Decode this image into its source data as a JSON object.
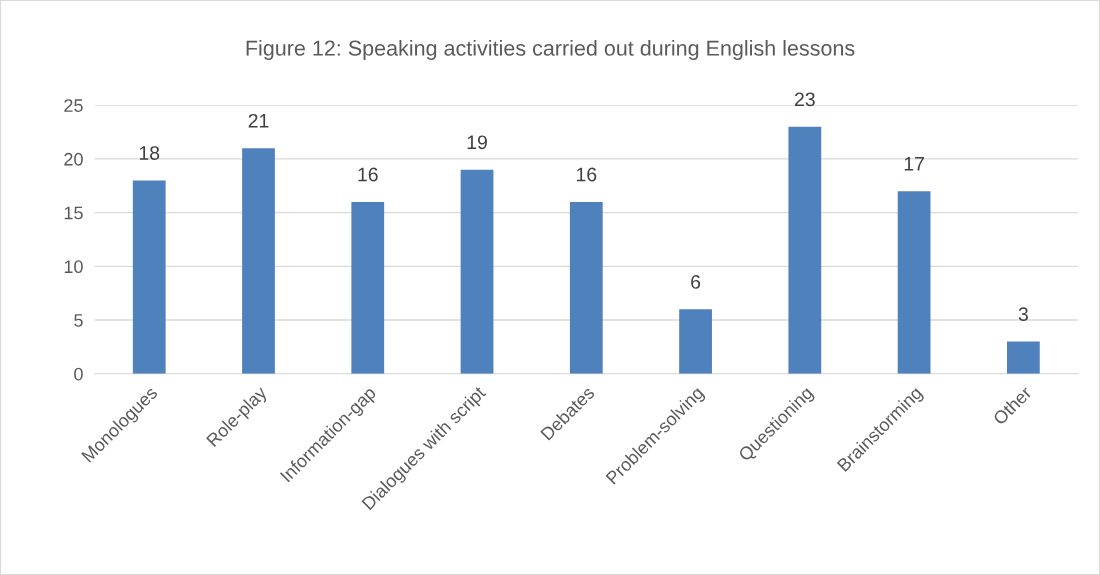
{
  "chart_data": {
    "type": "bar",
    "title": "Figure 12: Speaking activities carried out during English lessons",
    "categories": [
      "Monologues",
      "Role-play",
      "Information-gap",
      "Dialogues with script",
      "Debates",
      "Problem-solving",
      "Questioning",
      "Brainstorming",
      "Other"
    ],
    "values": [
      18,
      21,
      16,
      19,
      16,
      6,
      23,
      17,
      3
    ],
    "color": "#4f81bd",
    "ylim": [
      0,
      25
    ],
    "yticks": [
      0,
      5,
      10,
      15,
      20,
      25
    ],
    "grid": "y",
    "data_labels": true,
    "legend": false
  }
}
